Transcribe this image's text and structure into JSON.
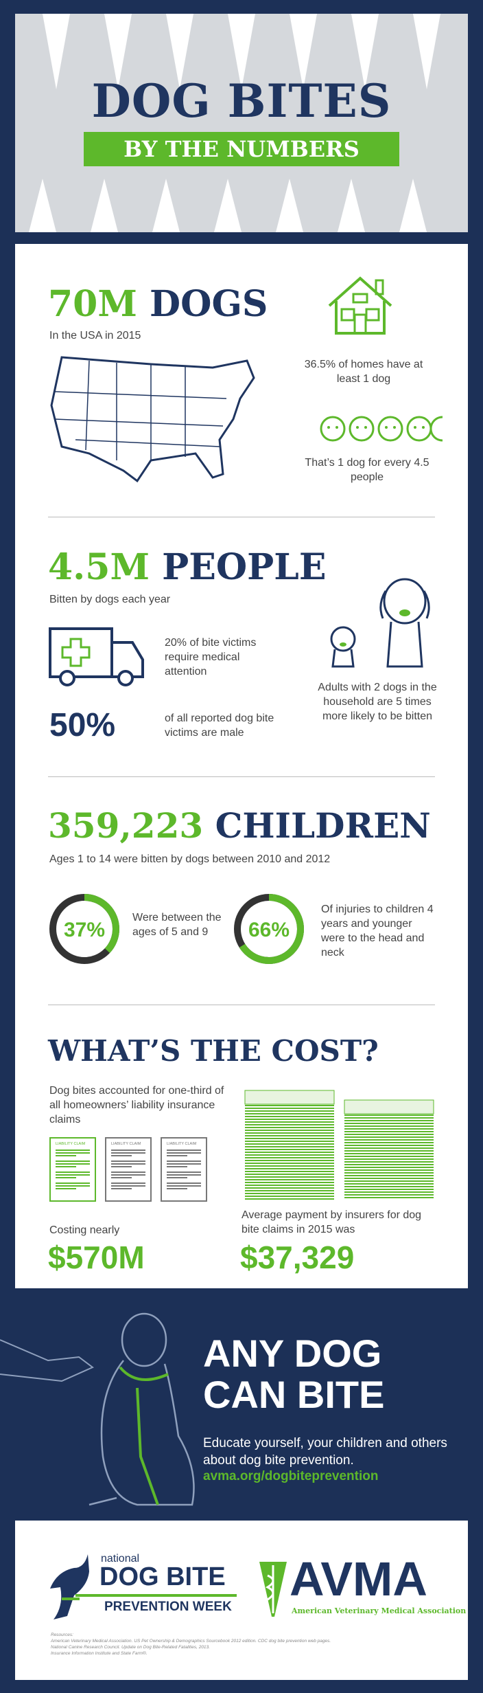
{
  "header": {
    "title": "DOG BITES",
    "subtitle": "BY THE NUMBERS"
  },
  "dogs": {
    "headline_num": "70M",
    "headline_word": "DOGS",
    "sub": "In the USA in 2015",
    "homes": "36.5% of homes have at least 1 dog",
    "ratio": "That’s 1 dog for every 4.5 people"
  },
  "people": {
    "headline_num": "4.5M",
    "headline_word": "PEOPLE",
    "sub": "Bitten by dogs each year",
    "medical": "20% of bite victims require medical attention",
    "male_pct": "50%",
    "male_text": "of all reported dog bite victims are male",
    "adults": "Adults with 2 dogs in the household are 5 times more likely to be bitten"
  },
  "children": {
    "headline_num": "359,223",
    "headline_word": "CHILDREN",
    "sub": "Ages 1 to 14 were bitten by dogs between 2010 and 2012",
    "stat1": {
      "pct": "37%",
      "value": 37,
      "text": "Were between the ages of 5 and 9"
    },
    "stat2": {
      "pct": "66%",
      "value": 66,
      "text": "Of injuries to children 4 years and younger were to the head and neck"
    }
  },
  "cost": {
    "headline": "WHAT’S THE COST?",
    "claims_text": "Dog bites accounted for one-third of all homeowners’ liability insurance claims",
    "claim_label": "LIABILITY CLAIM",
    "costing_label": "Costing nearly",
    "costing_value": "$570M",
    "avg_label": "Average payment by insurers for dog bite claims in 2015 was",
    "avg_value": "$37,329"
  },
  "cta": {
    "headline_1": "ANY DOG",
    "headline_2": "CAN BITE",
    "text": "Educate yourself, your children and others about dog bite prevention.",
    "link": "avma.org/dogbiteprevention"
  },
  "logos": {
    "ndbpw_small": "national",
    "ndbpw_main": "DOG BITE",
    "ndbpw_sub": "PREVENTION WEEK",
    "avma": "AVMA",
    "avma_full": "American Veterinary Medical Association"
  },
  "resources": {
    "label": "Resources:",
    "lines": [
      "American Veterinary Medical Association. US Pet Ownership & Demographics Sourcebook 2012 edition. CDC dog bite prevention web pages.",
      "National Canine Research Council. Update on Dog Bite-Related Fatalities, 2013.",
      "Insurance Information Institute and State Farm®."
    ]
  },
  "colors": {
    "navy": "#1f3560",
    "green": "#5db82b",
    "header_gray": "#d5d8dc"
  }
}
